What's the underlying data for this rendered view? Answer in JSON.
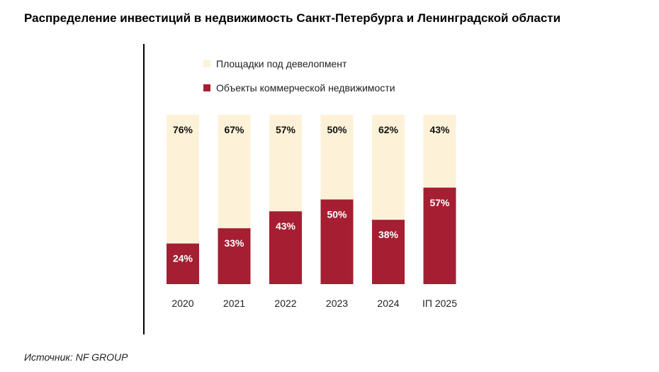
{
  "title": "Распределение инвестиций в недвижимость Санкт-Петербурга и Ленинградской области",
  "source": "Источник: NF GROUP",
  "colors": {
    "development": "#fdf2d8",
    "commercial": "#a61e32",
    "label_top": "#111111",
    "label_bottom": "#ffffff",
    "axis_text": "#222222"
  },
  "legend": [
    {
      "label": "Площадки под девелопмент",
      "color": "#fdf2d8"
    },
    {
      "label": "Объекты коммерческой недвижимости",
      "color": "#a61e32"
    }
  ],
  "chart_data": {
    "type": "bar",
    "stacked": true,
    "title": "Распределение инвестиций в недвижимость Санкт-Петербурга и Ленинградской области",
    "categories": [
      "2020",
      "2021",
      "2022",
      "2023",
      "2024",
      "IП 2025"
    ],
    "series": [
      {
        "name": "Объекты коммерческой недвижимости",
        "values": [
          24,
          33,
          43,
          50,
          38,
          57
        ],
        "labels": [
          "24%",
          "33%",
          "43%",
          "50%",
          "38%",
          "57%"
        ]
      },
      {
        "name": "Площадки под девелопмент",
        "values": [
          76,
          67,
          57,
          50,
          62,
          43
        ],
        "labels": [
          "76%",
          "67%",
          "57%",
          "50%",
          "62%",
          "43%"
        ]
      }
    ],
    "ylim": [
      0,
      100
    ],
    "xlabel": "",
    "ylabel": "",
    "grid": false,
    "legend_position": "top-left"
  }
}
